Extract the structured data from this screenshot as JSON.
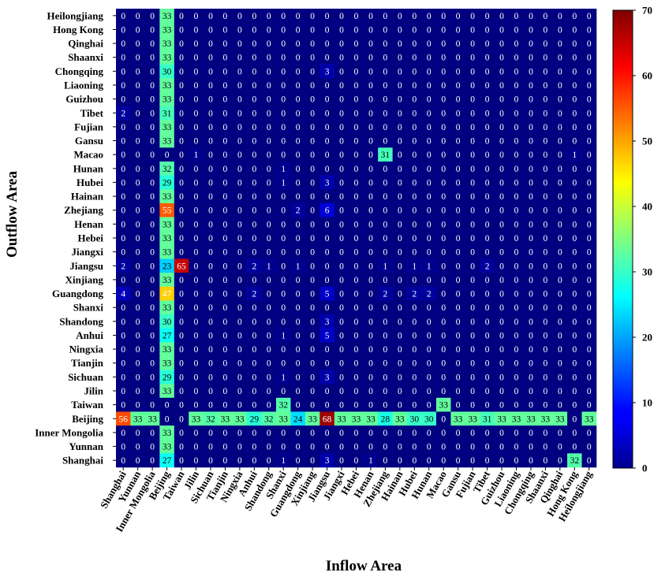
{
  "chart_data": {
    "type": "heatmap",
    "xlabel": "Inflow Area",
    "ylabel": "Outflow Area",
    "rows": [
      "Heilongjiang",
      "Hong Kong",
      "Qinghai",
      "Shaanxi",
      "Chongqing",
      "Liaoning",
      "Guizhou",
      "Tibet",
      "Fujian",
      "Gansu",
      "Macao",
      "Hunan",
      "Hubei",
      "Hainan",
      "Zhejiang",
      "Henan",
      "Hebei",
      "Jiangxi",
      "Jiangsu",
      "Xinjiang",
      "Guangdong",
      "Shanxi",
      "Shandong",
      "Anhui",
      "Ningxia",
      "Tianjin",
      "Sichuan",
      "Jilin",
      "Taiwan",
      "Beijing",
      "Inner Mongolia",
      "Yunnan",
      "Shanghai"
    ],
    "columns": [
      "Shanghai",
      "Yunnan",
      "Inner Mongolia",
      "Beijing",
      "Taiwan",
      "Jilin",
      "Sichuan",
      "Tianjin",
      "Ningxia",
      "Anhui",
      "Shandong",
      "Shanxi",
      "Guangdong",
      "Xinjiang",
      "Jiangsu",
      "Jiangxi",
      "Hebei",
      "Henan",
      "Zhejiang",
      "Hainan",
      "Hubei",
      "Hunan",
      "Macao",
      "Gansu",
      "Fujian",
      "Tibet",
      "Guizhou",
      "Liaoning",
      "Chongqing",
      "Shaanxi",
      "Qinghai",
      "Hong Kong",
      "Heilongjiang"
    ],
    "values": [
      [
        0,
        0,
        0,
        33,
        0,
        0,
        0,
        0,
        0,
        0,
        0,
        0,
        0,
        0,
        0,
        0,
        0,
        0,
        0,
        0,
        0,
        0,
        0,
        0,
        0,
        0,
        0,
        0,
        0,
        0,
        0,
        0,
        0
      ],
      [
        0,
        0,
        0,
        33,
        0,
        0,
        0,
        0,
        0,
        0,
        0,
        0,
        0,
        0,
        0,
        0,
        0,
        0,
        0,
        0,
        0,
        0,
        0,
        0,
        0,
        0,
        0,
        0,
        0,
        0,
        0,
        0,
        0
      ],
      [
        0,
        0,
        0,
        33,
        0,
        0,
        0,
        0,
        0,
        0,
        0,
        0,
        0,
        0,
        0,
        0,
        0,
        0,
        0,
        0,
        0,
        0,
        0,
        0,
        0,
        0,
        0,
        0,
        0,
        0,
        0,
        0,
        0
      ],
      [
        0,
        0,
        0,
        33,
        0,
        0,
        0,
        0,
        0,
        0,
        0,
        0,
        0,
        0,
        0,
        0,
        0,
        0,
        0,
        0,
        0,
        0,
        0,
        0,
        0,
        0,
        0,
        0,
        0,
        0,
        0,
        0,
        0
      ],
      [
        0,
        0,
        0,
        30,
        0,
        0,
        0,
        0,
        0,
        0,
        0,
        0,
        0,
        0,
        3,
        0,
        0,
        0,
        0,
        0,
        0,
        0,
        0,
        0,
        0,
        0,
        0,
        0,
        0,
        0,
        0,
        0,
        0
      ],
      [
        0,
        0,
        0,
        33,
        0,
        0,
        0,
        0,
        0,
        0,
        0,
        0,
        0,
        0,
        0,
        0,
        0,
        0,
        0,
        0,
        0,
        0,
        0,
        0,
        0,
        0,
        0,
        0,
        0,
        0,
        0,
        0,
        0
      ],
      [
        0,
        0,
        0,
        33,
        0,
        0,
        0,
        0,
        0,
        0,
        0,
        0,
        0,
        0,
        0,
        0,
        0,
        0,
        0,
        0,
        0,
        0,
        0,
        0,
        0,
        0,
        0,
        0,
        0,
        0,
        0,
        0,
        0
      ],
      [
        2,
        0,
        0,
        31,
        0,
        0,
        0,
        0,
        0,
        0,
        0,
        0,
        0,
        0,
        0,
        0,
        0,
        0,
        0,
        0,
        0,
        0,
        0,
        0,
        0,
        0,
        0,
        0,
        0,
        0,
        0,
        0,
        0
      ],
      [
        0,
        0,
        0,
        33,
        0,
        0,
        0,
        0,
        0,
        0,
        0,
        0,
        0,
        0,
        0,
        0,
        0,
        0,
        0,
        0,
        0,
        0,
        0,
        0,
        0,
        0,
        0,
        0,
        0,
        0,
        0,
        0,
        0
      ],
      [
        0,
        0,
        0,
        33,
        0,
        0,
        0,
        0,
        0,
        0,
        0,
        0,
        0,
        0,
        0,
        0,
        0,
        0,
        0,
        0,
        0,
        0,
        0,
        0,
        0,
        0,
        0,
        0,
        0,
        0,
        0,
        0,
        0
      ],
      [
        0,
        0,
        0,
        0,
        0,
        1,
        0,
        0,
        0,
        0,
        0,
        0,
        0,
        0,
        0,
        0,
        0,
        0,
        31,
        0,
        0,
        0,
        0,
        0,
        0,
        0,
        0,
        0,
        0,
        0,
        0,
        1,
        0
      ],
      [
        0,
        0,
        0,
        32,
        0,
        0,
        0,
        0,
        0,
        0,
        0,
        1,
        0,
        0,
        0,
        0,
        0,
        0,
        0,
        0,
        0,
        0,
        0,
        0,
        0,
        0,
        0,
        0,
        0,
        0,
        0,
        0,
        0
      ],
      [
        0,
        0,
        0,
        29,
        0,
        0,
        0,
        0,
        0,
        0,
        0,
        1,
        0,
        0,
        3,
        0,
        0,
        0,
        0,
        0,
        0,
        0,
        0,
        0,
        0,
        0,
        0,
        0,
        0,
        0,
        0,
        0,
        0
      ],
      [
        0,
        0,
        0,
        33,
        0,
        0,
        0,
        0,
        0,
        0,
        0,
        0,
        0,
        0,
        0,
        0,
        0,
        0,
        0,
        0,
        0,
        0,
        0,
        0,
        0,
        0,
        0,
        0,
        0,
        0,
        0,
        0,
        0
      ],
      [
        0,
        0,
        0,
        55,
        0,
        0,
        0,
        0,
        0,
        0,
        0,
        0,
        2,
        0,
        6,
        0,
        0,
        0,
        0,
        0,
        0,
        0,
        0,
        0,
        0,
        0,
        0,
        0,
        0,
        0,
        0,
        0,
        0
      ],
      [
        0,
        0,
        0,
        33,
        0,
        0,
        0,
        0,
        0,
        0,
        0,
        0,
        0,
        0,
        0,
        0,
        0,
        0,
        0,
        0,
        0,
        0,
        0,
        0,
        0,
        0,
        0,
        0,
        0,
        0,
        0,
        0,
        0
      ],
      [
        0,
        0,
        0,
        33,
        0,
        0,
        0,
        0,
        0,
        0,
        0,
        0,
        0,
        0,
        0,
        0,
        0,
        0,
        0,
        0,
        0,
        0,
        0,
        0,
        0,
        0,
        0,
        0,
        0,
        0,
        0,
        0,
        0
      ],
      [
        0,
        0,
        0,
        33,
        0,
        0,
        0,
        0,
        0,
        0,
        0,
        0,
        0,
        0,
        0,
        0,
        0,
        0,
        0,
        0,
        0,
        0,
        0,
        0,
        0,
        0,
        0,
        0,
        0,
        0,
        0,
        0,
        0
      ],
      [
        2,
        0,
        0,
        23,
        65,
        0,
        0,
        0,
        0,
        2,
        1,
        0,
        1,
        0,
        0,
        0,
        0,
        0,
        1,
        0,
        1,
        1,
        0,
        0,
        0,
        2,
        0,
        0,
        0,
        0,
        0,
        0,
        0
      ],
      [
        0,
        0,
        0,
        33,
        0,
        0,
        0,
        0,
        0,
        0,
        0,
        0,
        0,
        0,
        0,
        0,
        0,
        0,
        0,
        0,
        0,
        0,
        0,
        0,
        0,
        0,
        0,
        0,
        0,
        0,
        0,
        0,
        0
      ],
      [
        4,
        0,
        0,
        47,
        0,
        0,
        0,
        0,
        0,
        2,
        0,
        0,
        0,
        0,
        5,
        0,
        0,
        0,
        2,
        0,
        2,
        2,
        0,
        0,
        0,
        0,
        0,
        0,
        0,
        0,
        0,
        0,
        0
      ],
      [
        0,
        0,
        0,
        33,
        0,
        0,
        0,
        0,
        0,
        0,
        0,
        0,
        0,
        0,
        0,
        0,
        0,
        0,
        0,
        0,
        0,
        0,
        0,
        0,
        0,
        0,
        0,
        0,
        0,
        0,
        0,
        0,
        0
      ],
      [
        0,
        0,
        0,
        30,
        0,
        0,
        0,
        0,
        0,
        0,
        0,
        0,
        0,
        0,
        3,
        0,
        0,
        0,
        0,
        0,
        0,
        0,
        0,
        0,
        0,
        0,
        0,
        0,
        0,
        0,
        0,
        0,
        0
      ],
      [
        0,
        0,
        0,
        27,
        0,
        0,
        0,
        0,
        0,
        0,
        0,
        1,
        0,
        0,
        5,
        0,
        0,
        0,
        0,
        0,
        0,
        0,
        0,
        0,
        0,
        0,
        0,
        0,
        0,
        0,
        0,
        0,
        0
      ],
      [
        0,
        0,
        0,
        33,
        0,
        0,
        0,
        0,
        0,
        0,
        0,
        0,
        0,
        0,
        0,
        0,
        0,
        0,
        0,
        0,
        0,
        0,
        0,
        0,
        0,
        0,
        0,
        0,
        0,
        0,
        0,
        0,
        0
      ],
      [
        0,
        0,
        0,
        33,
        0,
        0,
        0,
        0,
        0,
        0,
        0,
        0,
        0,
        0,
        0,
        0,
        0,
        0,
        0,
        0,
        0,
        0,
        0,
        0,
        0,
        0,
        0,
        0,
        0,
        0,
        0,
        0,
        0
      ],
      [
        0,
        0,
        0,
        29,
        0,
        0,
        0,
        0,
        0,
        0,
        0,
        1,
        0,
        0,
        3,
        0,
        0,
        0,
        0,
        0,
        0,
        0,
        0,
        0,
        0,
        0,
        0,
        0,
        0,
        0,
        0,
        0,
        0
      ],
      [
        0,
        0,
        0,
        33,
        0,
        0,
        0,
        0,
        0,
        0,
        0,
        0,
        0,
        0,
        0,
        0,
        0,
        0,
        0,
        0,
        0,
        0,
        0,
        0,
        0,
        0,
        0,
        0,
        0,
        0,
        0,
        0,
        0
      ],
      [
        0,
        0,
        0,
        0,
        0,
        0,
        0,
        0,
        0,
        0,
        0,
        32,
        0,
        0,
        0,
        0,
        0,
        0,
        0,
        0,
        0,
        0,
        33,
        0,
        0,
        0,
        0,
        0,
        0,
        0,
        0,
        0,
        0
      ],
      [
        56,
        33,
        33,
        0,
        0,
        33,
        32,
        33,
        33,
        29,
        32,
        33,
        24,
        33,
        68,
        33,
        33,
        33,
        28,
        33,
        30,
        30,
        0,
        33,
        33,
        31,
        33,
        33,
        33,
        33,
        33,
        0,
        33
      ],
      [
        0,
        0,
        0,
        33,
        0,
        0,
        0,
        0,
        0,
        0,
        0,
        0,
        0,
        0,
        0,
        0,
        0,
        0,
        0,
        0,
        0,
        0,
        0,
        0,
        0,
        0,
        0,
        0,
        0,
        0,
        0,
        0,
        0
      ],
      [
        0,
        0,
        0,
        33,
        0,
        0,
        0,
        0,
        0,
        0,
        0,
        0,
        0,
        0,
        0,
        0,
        0,
        0,
        0,
        0,
        0,
        0,
        0,
        0,
        0,
        0,
        0,
        0,
        0,
        0,
        0,
        0,
        0
      ],
      [
        0,
        0,
        0,
        27,
        0,
        0,
        0,
        0,
        0,
        0,
        0,
        1,
        0,
        0,
        3,
        0,
        0,
        1,
        0,
        0,
        0,
        0,
        0,
        0,
        0,
        0,
        0,
        0,
        0,
        0,
        0,
        32,
        0
      ]
    ],
    "vmin": 0,
    "vmax": 70,
    "colormap": "jet",
    "colorbar_ticks": [
      0,
      10,
      20,
      30,
      40,
      50,
      60,
      70
    ]
  }
}
